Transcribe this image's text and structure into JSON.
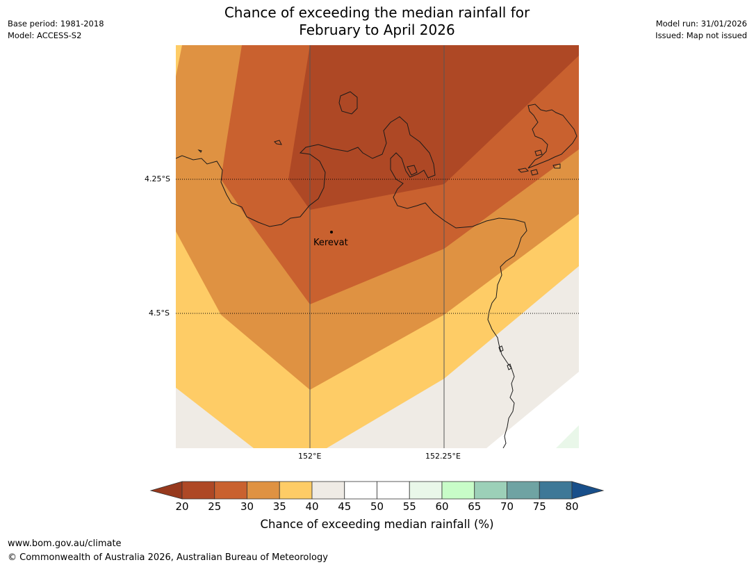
{
  "title": {
    "line1": "Chance of exceeding the median rainfall for",
    "line2": "February to April 2026"
  },
  "meta": {
    "base_period": "Base period: 1981-2018",
    "model": "Model: ACCESS-S2",
    "model_run": "Model run: 31/01/2026",
    "issued": "Issued: Map not issued"
  },
  "map": {
    "lat_labels": [
      "4.25°S",
      "4.5°S"
    ],
    "lon_labels": [
      "152°E",
      "152.25°E"
    ],
    "place": "Kerevat"
  },
  "colorbar": {
    "ticks": [
      "20",
      "25",
      "30",
      "35",
      "40",
      "45",
      "50",
      "55",
      "60",
      "65",
      "70",
      "75",
      "80"
    ],
    "colors": [
      "#ae4825",
      "#c9612f",
      "#df9242",
      "#fecc66",
      "#efebe5",
      "#ffffff",
      "#ffffff",
      "#e9f7e9",
      "#c8fcc8",
      "#9cd0b8",
      "#6fa3a3",
      "#3e7897"
    ],
    "under_color": "#97391d",
    "over_color": "#184f8a",
    "caption": "Chance of exceeding median rainfall (%)"
  },
  "footer": {
    "url": "www.bom.gov.au/climate",
    "copyright": "© Commonwealth of Australia 2026, Australian Bureau of Meteorology"
  }
}
